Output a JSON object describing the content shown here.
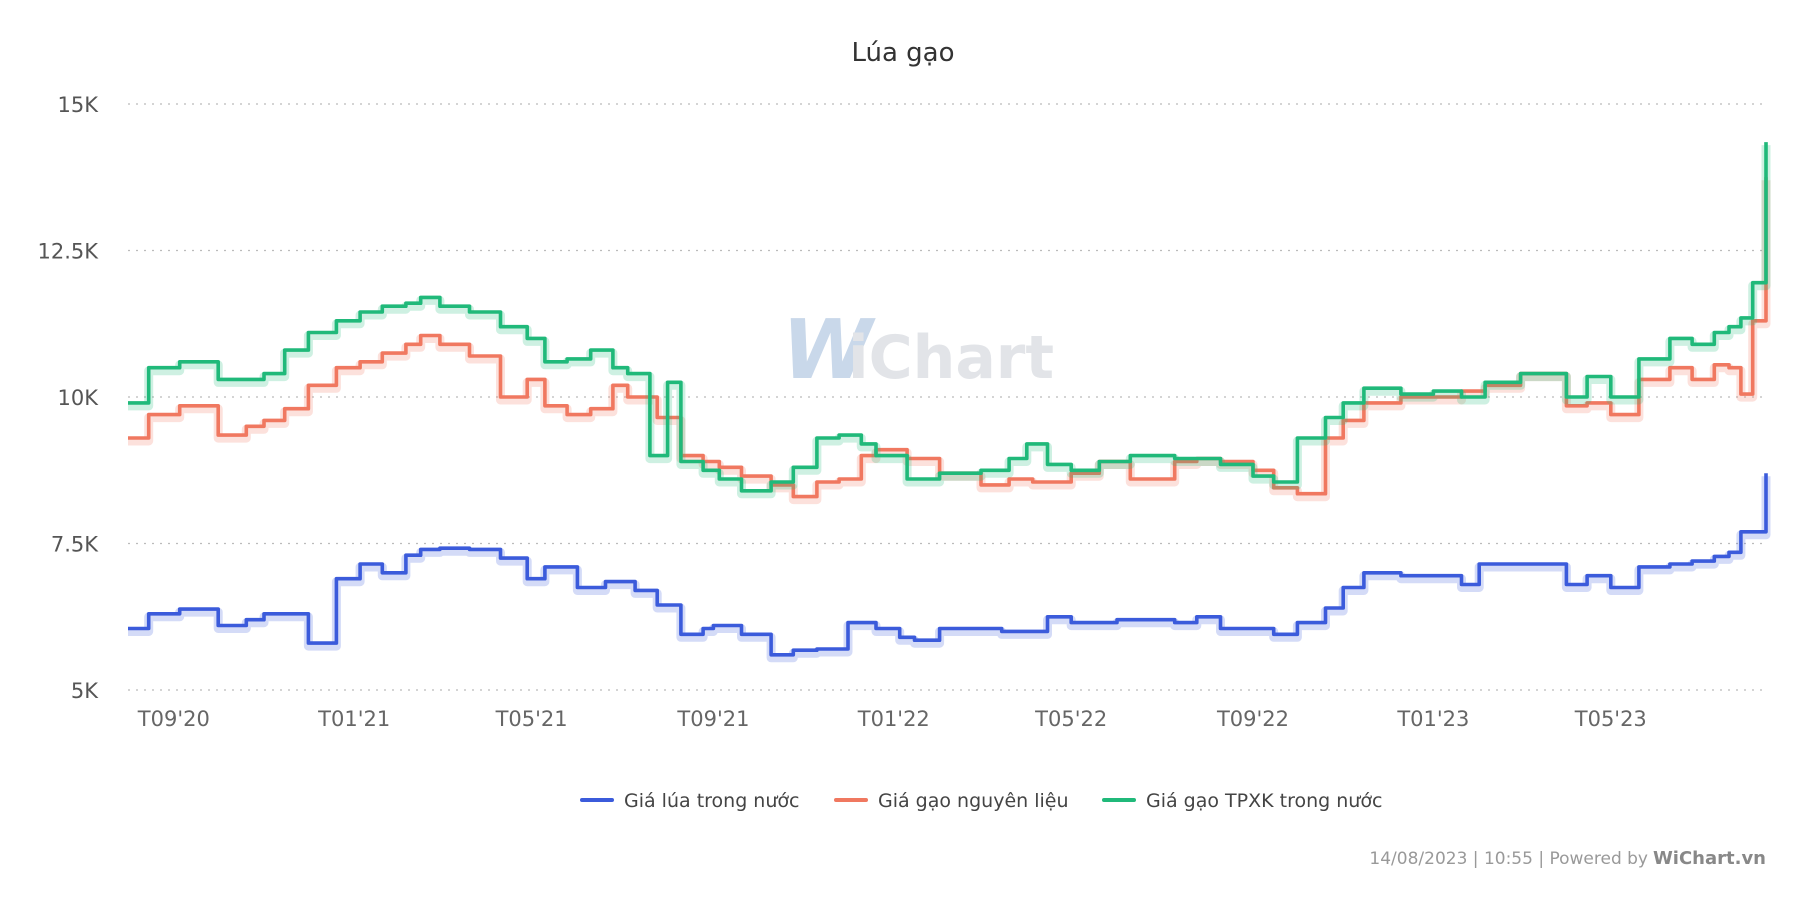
{
  "chart_data": {
    "type": "line",
    "title": "Lúa gạo",
    "xlabel": "",
    "ylabel": "",
    "x_ticks": [
      "T09'20",
      "T01'21",
      "T05'21",
      "T09'21",
      "T01'22",
      "T05'22",
      "T09'22",
      "T01'23",
      "T05'23"
    ],
    "y_ticks": [
      "5K",
      "7.5K",
      "10K",
      "12.5K",
      "15K"
    ],
    "ylim": [
      5000,
      15000
    ],
    "grid": true,
    "legend": "bottom",
    "series": [
      {
        "name": "Giá lúa trong nước",
        "color": "#3b5bdb",
        "x": [
          "2020-08-01",
          "2020-08-15",
          "2020-09-05",
          "2020-10-01",
          "2020-10-20",
          "2020-11-01",
          "2020-12-01",
          "2020-12-20",
          "2021-01-05",
          "2021-01-20",
          "2021-02-05",
          "2021-02-15",
          "2021-02-28",
          "2021-03-20",
          "2021-04-10",
          "2021-04-28",
          "2021-05-10",
          "2021-06-01",
          "2021-06-20",
          "2021-07-10",
          "2021-07-25",
          "2021-08-10",
          "2021-08-25",
          "2021-09-01",
          "2021-09-20",
          "2021-10-10",
          "2021-10-25",
          "2021-11-10",
          "2021-12-01",
          "2021-12-20",
          "2022-01-05",
          "2022-01-15",
          "2022-02-01",
          "2022-03-15",
          "2022-04-01",
          "2022-04-15",
          "2022-05-01",
          "2022-06-01",
          "2022-06-20",
          "2022-07-10",
          "2022-07-25",
          "2022-08-10",
          "2022-09-01",
          "2022-09-15",
          "2022-10-01",
          "2022-10-20",
          "2022-11-01",
          "2022-11-15",
          "2022-12-10",
          "2023-01-01",
          "2023-01-20",
          "2023-02-01",
          "2023-03-01",
          "2023-04-01",
          "2023-04-15",
          "2023-05-01",
          "2023-05-20",
          "2023-06-10",
          "2023-06-25",
          "2023-07-10",
          "2023-07-20",
          "2023-07-28",
          "2023-08-14"
        ],
        "values": [
          6050,
          6300,
          6380,
          6100,
          6200,
          6300,
          5800,
          6900,
          7150,
          7000,
          7300,
          7400,
          7420,
          7400,
          7250,
          6900,
          7100,
          6750,
          6850,
          6700,
          6450,
          5950,
          6050,
          6100,
          5950,
          5600,
          5680,
          5700,
          6150,
          6050,
          5900,
          5850,
          6050,
          6000,
          6000,
          6250,
          6150,
          6200,
          6200,
          6150,
          6250,
          6050,
          6050,
          5950,
          6150,
          6400,
          6750,
          7000,
          6950,
          6950,
          6800,
          7150,
          7150,
          6800,
          6950,
          6750,
          7100,
          7150,
          7200,
          7280,
          7350,
          7700,
          8700
        ]
      },
      {
        "name": "Giá gạo nguyên liệu",
        "color": "#f07860",
        "x": [
          "2020-08-01",
          "2020-08-15",
          "2020-09-05",
          "2020-10-01",
          "2020-10-20",
          "2020-11-01",
          "2020-11-15",
          "2020-12-01",
          "2020-12-20",
          "2021-01-05",
          "2021-01-20",
          "2021-02-05",
          "2021-02-15",
          "2021-02-28",
          "2021-03-20",
          "2021-04-10",
          "2021-04-28",
          "2021-05-10",
          "2021-05-25",
          "2021-06-10",
          "2021-06-25",
          "2021-07-05",
          "2021-07-25",
          "2021-08-10",
          "2021-08-25",
          "2021-09-05",
          "2021-09-20",
          "2021-10-10",
          "2021-10-25",
          "2021-11-10",
          "2021-11-25",
          "2021-12-10",
          "2021-12-20",
          "2022-01-10",
          "2022-02-01",
          "2022-03-01",
          "2022-03-20",
          "2022-04-05",
          "2022-05-01",
          "2022-05-20",
          "2022-06-10",
          "2022-07-10",
          "2022-07-25",
          "2022-08-10",
          "2022-09-01",
          "2022-09-15",
          "2022-10-01",
          "2022-10-20",
          "2022-11-01",
          "2022-11-15",
          "2022-12-10",
          "2023-01-01",
          "2023-01-20",
          "2023-02-05",
          "2023-03-01",
          "2023-04-01",
          "2023-04-15",
          "2023-05-01",
          "2023-05-20",
          "2023-06-10",
          "2023-06-25",
          "2023-07-10",
          "2023-07-20",
          "2023-07-28",
          "2023-08-05",
          "2023-08-14"
        ],
        "values": [
          9300,
          9700,
          9850,
          9350,
          9500,
          9600,
          9800,
          10200,
          10500,
          10600,
          10750,
          10900,
          11050,
          10900,
          10700,
          10000,
          10300,
          9850,
          9700,
          9800,
          10200,
          10000,
          9650,
          9000,
          8900,
          8800,
          8650,
          8500,
          8300,
          8550,
          8600,
          9000,
          9100,
          8950,
          8700,
          8500,
          8600,
          8550,
          8700,
          8900,
          8600,
          8900,
          8950,
          8900,
          8750,
          8450,
          8350,
          9300,
          9600,
          9900,
          10000,
          10000,
          10100,
          10200,
          10400,
          9850,
          9900,
          9700,
          10300,
          10500,
          10300,
          10550,
          10500,
          10050,
          11300,
          13750
        ]
      },
      {
        "name": "Giá gạo TPXK trong nước",
        "color": "#20b97a",
        "x": [
          "2020-08-01",
          "2020-08-15",
          "2020-09-05",
          "2020-10-01",
          "2020-10-20",
          "2020-11-01",
          "2020-11-15",
          "2020-12-01",
          "2020-12-20",
          "2021-01-05",
          "2021-01-20",
          "2021-02-05",
          "2021-02-15",
          "2021-02-28",
          "2021-03-20",
          "2021-04-10",
          "2021-04-28",
          "2021-05-10",
          "2021-05-25",
          "2021-06-10",
          "2021-06-25",
          "2021-07-05",
          "2021-07-20",
          "2021-08-01",
          "2021-08-10",
          "2021-08-25",
          "2021-09-05",
          "2021-09-20",
          "2021-10-10",
          "2021-10-25",
          "2021-11-10",
          "2021-11-25",
          "2021-12-10",
          "2021-12-20",
          "2022-01-10",
          "2022-02-01",
          "2022-03-01",
          "2022-03-20",
          "2022-04-01",
          "2022-04-15",
          "2022-05-01",
          "2022-05-20",
          "2022-06-10",
          "2022-07-10",
          "2022-07-25",
          "2022-08-10",
          "2022-09-01",
          "2022-09-15",
          "2022-10-01",
          "2022-10-20",
          "2022-11-01",
          "2022-11-15",
          "2022-12-10",
          "2023-01-01",
          "2023-01-20",
          "2023-02-05",
          "2023-03-01",
          "2023-04-01",
          "2023-04-15",
          "2023-05-01",
          "2023-05-20",
          "2023-06-10",
          "2023-06-25",
          "2023-07-10",
          "2023-07-20",
          "2023-07-28",
          "2023-08-05",
          "2023-08-14"
        ],
        "values": [
          9900,
          10500,
          10600,
          10300,
          10300,
          10400,
          10800,
          11100,
          11300,
          11450,
          11550,
          11600,
          11700,
          11550,
          11450,
          11200,
          11000,
          10600,
          10650,
          10800,
          10500,
          10400,
          9000,
          10250,
          8900,
          8750,
          8600,
          8400,
          8550,
          8800,
          9300,
          9350,
          9200,
          9000,
          8600,
          8700,
          8750,
          8950,
          9200,
          8850,
          8750,
          8900,
          9000,
          8950,
          8950,
          8850,
          8650,
          8550,
          9300,
          9650,
          9900,
          10150,
          10050,
          10100,
          10000,
          10250,
          10400,
          10000,
          10350,
          10000,
          10650,
          11000,
          10900,
          11100,
          11200,
          11350,
          11950,
          14350
        ]
      }
    ]
  },
  "footer": {
    "timestamp": "14/08/2023 | 10:55 | Powered by",
    "brand": "WiChart.vn"
  },
  "watermark": {
    "w": "W",
    "rest": "iChart"
  }
}
